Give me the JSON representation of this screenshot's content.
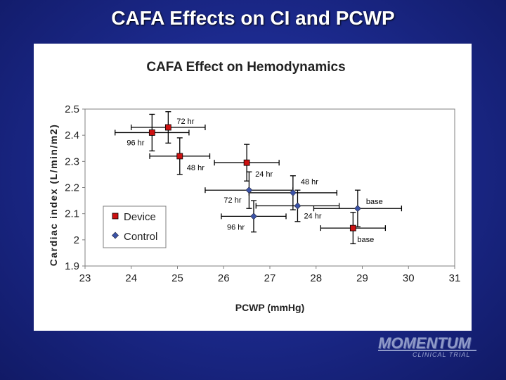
{
  "slide": {
    "title": "CAFA Effects on CI and PCWP"
  },
  "colors": {
    "background": "#1c2a8e",
    "device": "#cc1111",
    "control": "#3b53a8",
    "errorbar": "#000000",
    "plot_border": "#808080"
  },
  "chart_data": {
    "type": "scatter",
    "title": "CAFA Effect on Hemodynamics",
    "xlabel": "PCWP (mmHg)",
    "ylabel": "Cardiac index (L/min/m2)",
    "xlim": [
      23,
      31
    ],
    "ylim": [
      1.9,
      2.5
    ],
    "xticks": [
      23,
      24,
      25,
      26,
      27,
      28,
      29,
      30,
      31
    ],
    "yticks": [
      1.9,
      2,
      2.1,
      2.2,
      2.3,
      2.4,
      2.5
    ],
    "xtick_labels": [
      "23",
      "24",
      "25",
      "26",
      "27",
      "28",
      "29",
      "30",
      "31"
    ],
    "ytick_labels": [
      "1.9",
      "2",
      "2.1",
      "2.2",
      "2.3",
      "2.4",
      "2.5"
    ],
    "grid": false,
    "legend_position": "bottom-left",
    "series": [
      {
        "name": "Device",
        "marker": "square",
        "points": [
          {
            "label": "base",
            "x": 28.8,
            "y": 2.045,
            "xerr": 0.7,
            "yerr": 0.06
          },
          {
            "label": "24 hr",
            "x": 26.5,
            "y": 2.295,
            "xerr": 0.7,
            "yerr": 0.07
          },
          {
            "label": "48 hr",
            "x": 25.05,
            "y": 2.32,
            "xerr": 0.65,
            "yerr": 0.07
          },
          {
            "label": "72 hr",
            "x": 24.8,
            "y": 2.43,
            "xerr": 0.8,
            "yerr": 0.06
          },
          {
            "label": "96 hr",
            "x": 24.45,
            "y": 2.41,
            "xerr": 0.8,
            "yerr": 0.07
          }
        ]
      },
      {
        "name": "Control",
        "marker": "diamond",
        "points": [
          {
            "label": "base",
            "x": 28.9,
            "y": 2.12,
            "xerr": 0.95,
            "yerr": 0.07
          },
          {
            "label": "24 hr",
            "x": 27.6,
            "y": 2.13,
            "xerr": 0.9,
            "yerr": 0.06
          },
          {
            "label": "48 hr",
            "x": 27.5,
            "y": 2.18,
            "xerr": 0.95,
            "yerr": 0.065
          },
          {
            "label": "72 hr",
            "x": 26.55,
            "y": 2.19,
            "xerr": 0.95,
            "yerr": 0.07
          },
          {
            "label": "96 hr",
            "x": 26.65,
            "y": 2.09,
            "xerr": 0.7,
            "yerr": 0.06
          }
        ]
      }
    ]
  },
  "logo": {
    "main": "MOMENTUM",
    "sub": "CLINICAL TRIAL"
  }
}
